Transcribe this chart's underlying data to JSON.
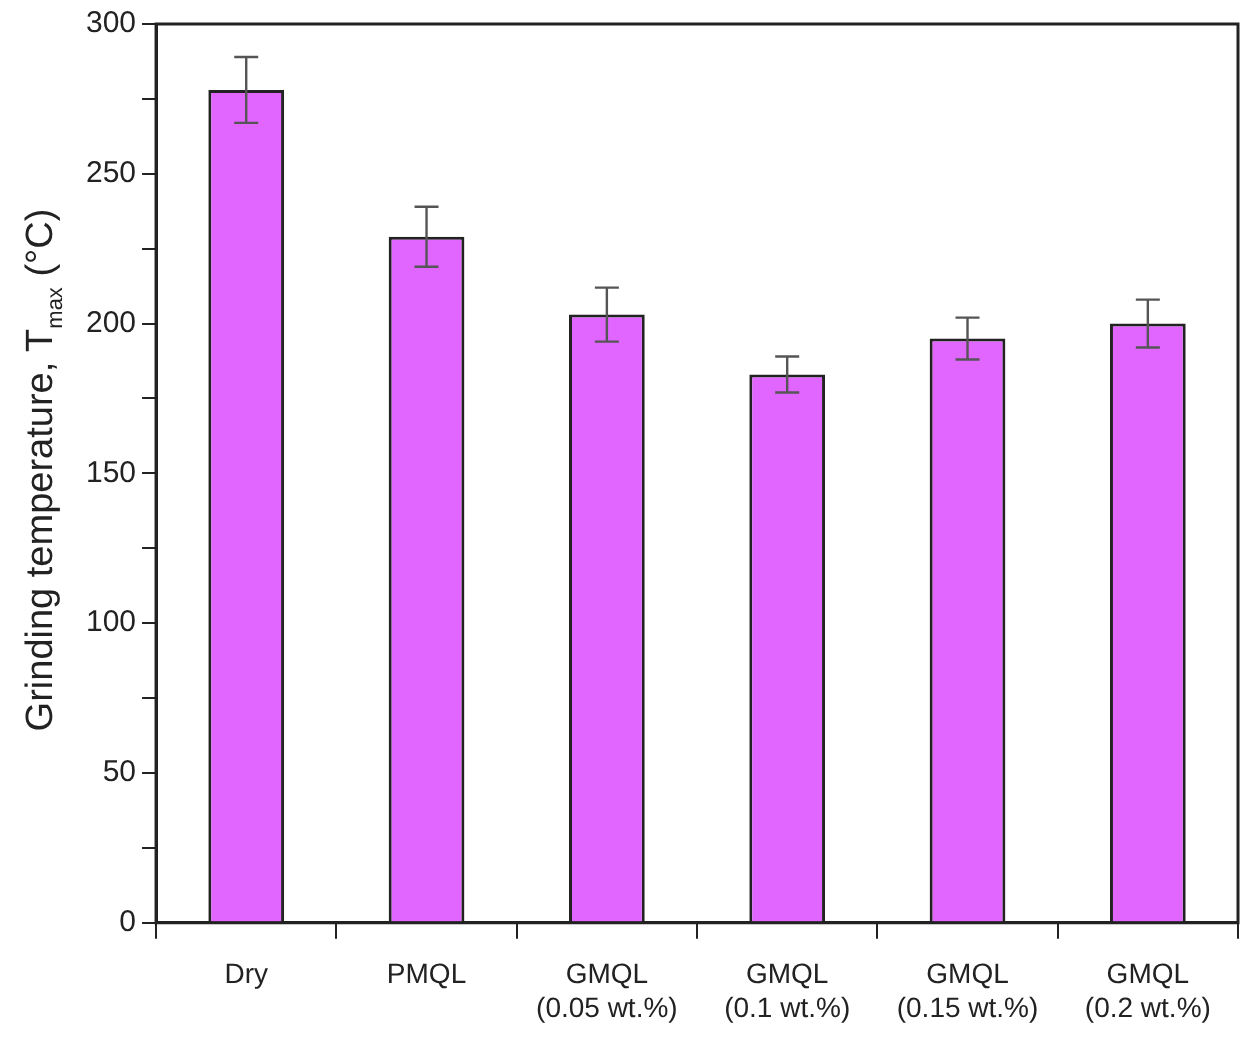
{
  "chart_data": {
    "type": "bar",
    "ylabel": "Grinding temperature, T$_{max}$ (°C)",
    "categories": [
      "Dry",
      "PMQL",
      "GMQL\n(0.05 wt.%)",
      "GMQL\n(0.1 wt.%)",
      "GMQL\n(0.15 wt.%)",
      "GMQL\n(0.2 wt.%)"
    ],
    "values": [
      278,
      229,
      203,
      183,
      195,
      200
    ],
    "errors": [
      11,
      10,
      9,
      6,
      7,
      8
    ],
    "color": "#e066ff",
    "ylim": [
      0,
      300
    ],
    "yticks": [
      0,
      {
        "value": 25,
        "label": null
      },
      50,
      {
        "value": 75,
        "label": null
      },
      100,
      {
        "value": 125,
        "label": null
      },
      150,
      {
        "value": 175,
        "label": null
      },
      200,
      {
        "value": 225,
        "label": null
      },
      250,
      {
        "value": 275,
        "label": null
      },
      300
    ],
    "grid": false,
    "legend": false
  }
}
